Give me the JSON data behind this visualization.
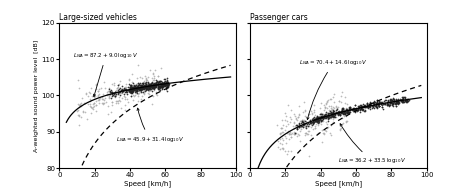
{
  "left_title": "Large-sized vehicles",
  "right_title": "Passenger cars",
  "ylabel": "A-weighted sound power level  [dB]",
  "xlabel": "Speed [km/h]",
  "ylim": [
    80,
    120
  ],
  "xlim": [
    0,
    100
  ],
  "yticks": [
    80,
    90,
    100,
    110,
    120
  ],
  "xticks": [
    0,
    20,
    40,
    60,
    80,
    100
  ],
  "scatter_color_light": "#aaaaaa",
  "scatter_color_dark": "#222222",
  "bg_color": "#ffffff",
  "left_ann1_text": "$L_{WA} = 87.2 + 9.0\\,\\mathrm{log}_{10}\\,V$",
  "left_ann2_text": "$L_{WA} = 45.9 + 31.4\\,\\mathrm{log}_{10}\\,V$",
  "right_ann1_text": "$L_{WA} = 70.4 + 14.6\\,\\mathrm{log}_{10}\\,V$",
  "right_ann2_text": "$L_{WA} = 36.2 + 33.5\\,\\mathrm{log}_{10}\\,V$"
}
